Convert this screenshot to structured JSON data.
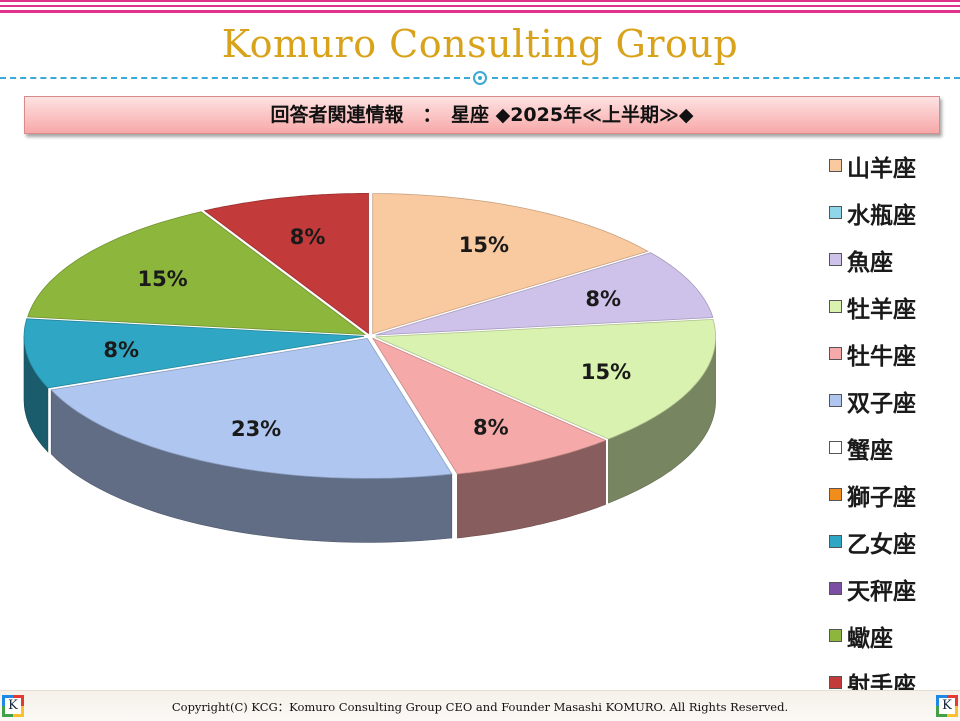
{
  "brand": {
    "title": "Komuro Consulting Group"
  },
  "header": {
    "title": "回答者関連情報　：　星座 ◆2025年≪上半期≫◆"
  },
  "footer": {
    "copyright": "Copyright(C)  KCG：Komuro Consulting Group CEO and Founder Masashi KOMURO. All Rights Reserved.",
    "logo_letter": "K"
  },
  "chart_data": {
    "type": "pie",
    "style": "3d-exploded",
    "legend_position": "right",
    "categories": [
      "山羊座",
      "水瓶座",
      "魚座",
      "牡羊座",
      "牡牛座",
      "双子座",
      "蟹座",
      "獅子座",
      "乙女座",
      "天秤座",
      "蠍座",
      "射手座"
    ],
    "values": [
      15,
      0,
      8,
      15,
      8,
      23,
      0,
      0,
      8,
      0,
      15,
      8
    ],
    "labels": [
      "15%",
      "",
      "8%",
      "15%",
      "8%",
      "23%",
      "",
      "",
      "8%",
      "",
      "15%",
      "8%"
    ],
    "colors": [
      "#f9c9a0",
      "#8fd6e8",
      "#cfc2ea",
      "#d9f2b0",
      "#f5aaa9",
      "#aec6f0",
      "#ffffff",
      "#f28c1a",
      "#2fa7c4",
      "#7b4ea3",
      "#8db63c",
      "#c23a3a"
    ]
  }
}
